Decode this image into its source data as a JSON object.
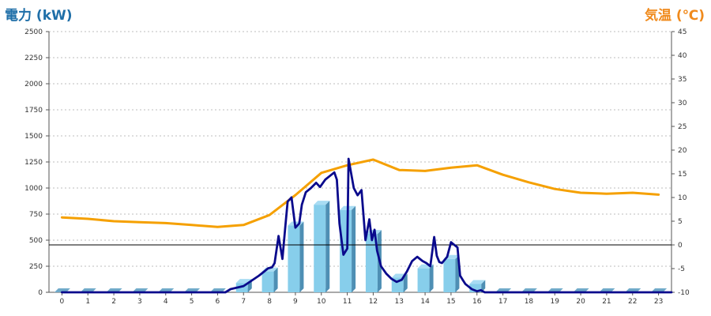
{
  "chart_data": {
    "type": "bar",
    "title_left": "電力 (kW)",
    "title_right": "気温 (℃)",
    "categories": [
      "0",
      "1",
      "2",
      "3",
      "4",
      "5",
      "6",
      "7",
      "8",
      "9",
      "10",
      "11",
      "12",
      "13",
      "14",
      "15",
      "16",
      "17",
      "18",
      "19",
      "20",
      "21",
      "22",
      "23"
    ],
    "y_left": {
      "min": 0,
      "max": 2500,
      "ticks": [
        0,
        250,
        500,
        750,
        1000,
        1250,
        1500,
        1750,
        2000,
        2250,
        2500
      ]
    },
    "y_right": {
      "min": -10,
      "max": 45,
      "ticks": [
        -10,
        -5,
        0,
        5,
        10,
        15,
        20,
        25,
        30,
        35,
        40,
        45
      ]
    },
    "grid": true,
    "series": [
      {
        "kind": "bar",
        "axis": "left",
        "color": "#87ceeb",
        "values": [
          0,
          0,
          0,
          0,
          0,
          0,
          0,
          90,
          200,
          640,
          840,
          790,
          560,
          140,
          230,
          320,
          80,
          0,
          0,
          0,
          0,
          0,
          0,
          0
        ]
      },
      {
        "kind": "line",
        "axis": "right",
        "color": "#f5a000",
        "x": [
          0,
          1,
          2,
          3,
          4,
          5,
          6,
          7,
          8,
          9,
          10,
          11,
          12,
          13,
          14,
          15,
          16,
          17,
          18,
          19,
          20,
          21,
          22,
          23
        ],
        "values": [
          5.8,
          5.5,
          5.0,
          4.8,
          4.6,
          4.2,
          3.8,
          4.2,
          6.3,
          10.5,
          15.2,
          16.8,
          18.0,
          15.8,
          15.6,
          16.3,
          16.8,
          14.8,
          13.2,
          11.8,
          11.0,
          10.8,
          11.0,
          10.6
        ]
      },
      {
        "kind": "line",
        "axis": "left",
        "color": "#0a0a8c",
        "x": [
          0,
          6.3,
          6.5,
          7.0,
          7.3,
          7.6,
          7.8,
          7.95,
          8.1,
          8.2,
          8.35,
          8.5,
          8.6,
          8.7,
          8.85,
          9.0,
          9.15,
          9.25,
          9.4,
          9.6,
          9.8,
          9.95,
          10.15,
          10.35,
          10.5,
          10.6,
          10.7,
          10.85,
          11.0,
          11.05,
          11.15,
          11.25,
          11.4,
          11.55,
          11.7,
          11.85,
          11.95,
          12.05,
          12.15,
          12.3,
          12.5,
          12.7,
          12.9,
          13.1,
          13.3,
          13.5,
          13.7,
          13.9,
          14.05,
          14.2,
          14.35,
          14.45,
          14.55,
          14.65,
          14.75,
          14.85,
          15.0,
          15.1,
          15.25,
          15.35,
          15.45,
          15.55,
          15.65,
          15.8,
          16.0,
          16.15,
          16.3,
          16.45,
          23.5
        ],
        "values": [
          0,
          0,
          30,
          60,
          110,
          160,
          200,
          230,
          240,
          280,
          540,
          320,
          600,
          870,
          910,
          620,
          660,
          840,
          960,
          1000,
          1050,
          1010,
          1080,
          1120,
          1150,
          1080,
          660,
          360,
          420,
          1280,
          1140,
          1000,
          930,
          980,
          500,
          700,
          500,
          600,
          400,
          250,
          180,
          130,
          100,
          120,
          200,
          300,
          340,
          300,
          280,
          250,
          530,
          350,
          290,
          280,
          310,
          340,
          480,
          460,
          430,
          160,
          120,
          80,
          60,
          30,
          10,
          20,
          0,
          0,
          0
        ]
      }
    ],
    "annotations": [
      "horizontal reference line at 0 ℃ (≈455 kW on left axis)"
    ]
  }
}
